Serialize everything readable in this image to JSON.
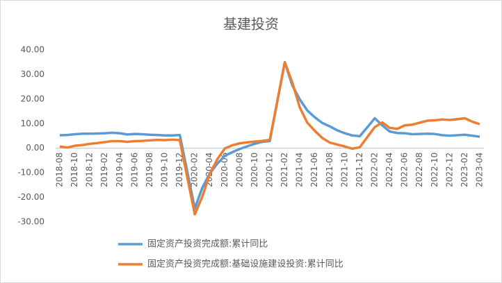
{
  "chart_data": {
    "type": "line",
    "title": "基建投资",
    "categories": [
      "2018-08",
      null,
      "2018-10",
      null,
      "2018-12",
      null,
      "2019-02",
      null,
      "2019-04",
      null,
      "2019-06",
      null,
      "2019-08",
      null,
      "2019-10",
      null,
      "2019-12",
      null,
      "2020-02",
      null,
      "2020-04",
      null,
      "2020-06",
      null,
      "2020-08",
      null,
      "2020-10",
      null,
      "2020-12",
      null,
      "2021-02",
      null,
      "2021-04",
      null,
      "2021-06",
      null,
      "2021-08",
      null,
      "2021-10",
      null,
      "2021-12",
      null,
      "2022-02",
      null,
      "2022-04",
      null,
      "2022-06",
      null,
      "2022-08",
      null,
      "2022-10",
      null,
      "2022-12",
      null,
      "2023-02",
      null,
      "2023-04"
    ],
    "series": [
      {
        "name": "固定资产投资完成额:累计同比",
        "color": "#5b9bd5",
        "values": [
          5.3,
          5.4,
          5.7,
          5.9,
          5.9,
          6.0,
          6.1,
          6.3,
          6.1,
          5.6,
          5.8,
          5.7,
          5.5,
          5.4,
          5.2,
          5.2,
          5.4,
          -9.5,
          -24.5,
          -16.1,
          -10.3,
          -6.3,
          -3.1,
          -1.6,
          -0.3,
          0.8,
          1.8,
          2.6,
          2.9,
          19.0,
          35.0,
          25.6,
          19.9,
          15.4,
          12.6,
          10.3,
          8.9,
          7.3,
          6.1,
          5.2,
          4.9,
          8.5,
          12.2,
          9.3,
          6.8,
          6.2,
          6.1,
          5.7,
          5.8,
          5.9,
          5.8,
          5.3,
          5.1,
          5.3,
          5.5,
          5.1,
          4.7
        ]
      },
      {
        "name": "固定资产投资完成额:基础设施建设投资:累计同比",
        "color": "#ed7d31",
        "values": [
          0.7,
          0.3,
          1.0,
          1.3,
          1.8,
          2.1,
          2.5,
          2.9,
          2.9,
          2.6,
          2.9,
          3.0,
          3.2,
          3.4,
          3.3,
          3.5,
          3.3,
          -11.8,
          -26.9,
          -19.7,
          -10.5,
          -4.5,
          -0.1,
          1.2,
          2.0,
          2.4,
          2.7,
          3.0,
          3.4,
          19.0,
          35.0,
          26.8,
          16.6,
          10.4,
          7.1,
          4.2,
          2.3,
          1.5,
          0.7,
          -0.2,
          0.4,
          4.5,
          8.6,
          10.5,
          8.3,
          7.9,
          9.3,
          9.6,
          10.4,
          11.2,
          11.4,
          11.7,
          11.5,
          11.8,
          12.2,
          10.8,
          9.8
        ]
      }
    ],
    "ylim": [
      -30,
      40
    ],
    "yticks": [
      {
        "value": -30,
        "label": "-30.00"
      },
      {
        "value": -20,
        "label": "-20.00"
      },
      {
        "value": -10,
        "label": "-10.00"
      },
      {
        "value": 0,
        "label": "0.00"
      },
      {
        "value": 10,
        "label": "10.00"
      },
      {
        "value": 20,
        "label": "20.00"
      },
      {
        "value": 30,
        "label": "30.00"
      },
      {
        "value": 40,
        "label": "40.00"
      }
    ],
    "grid": false
  }
}
